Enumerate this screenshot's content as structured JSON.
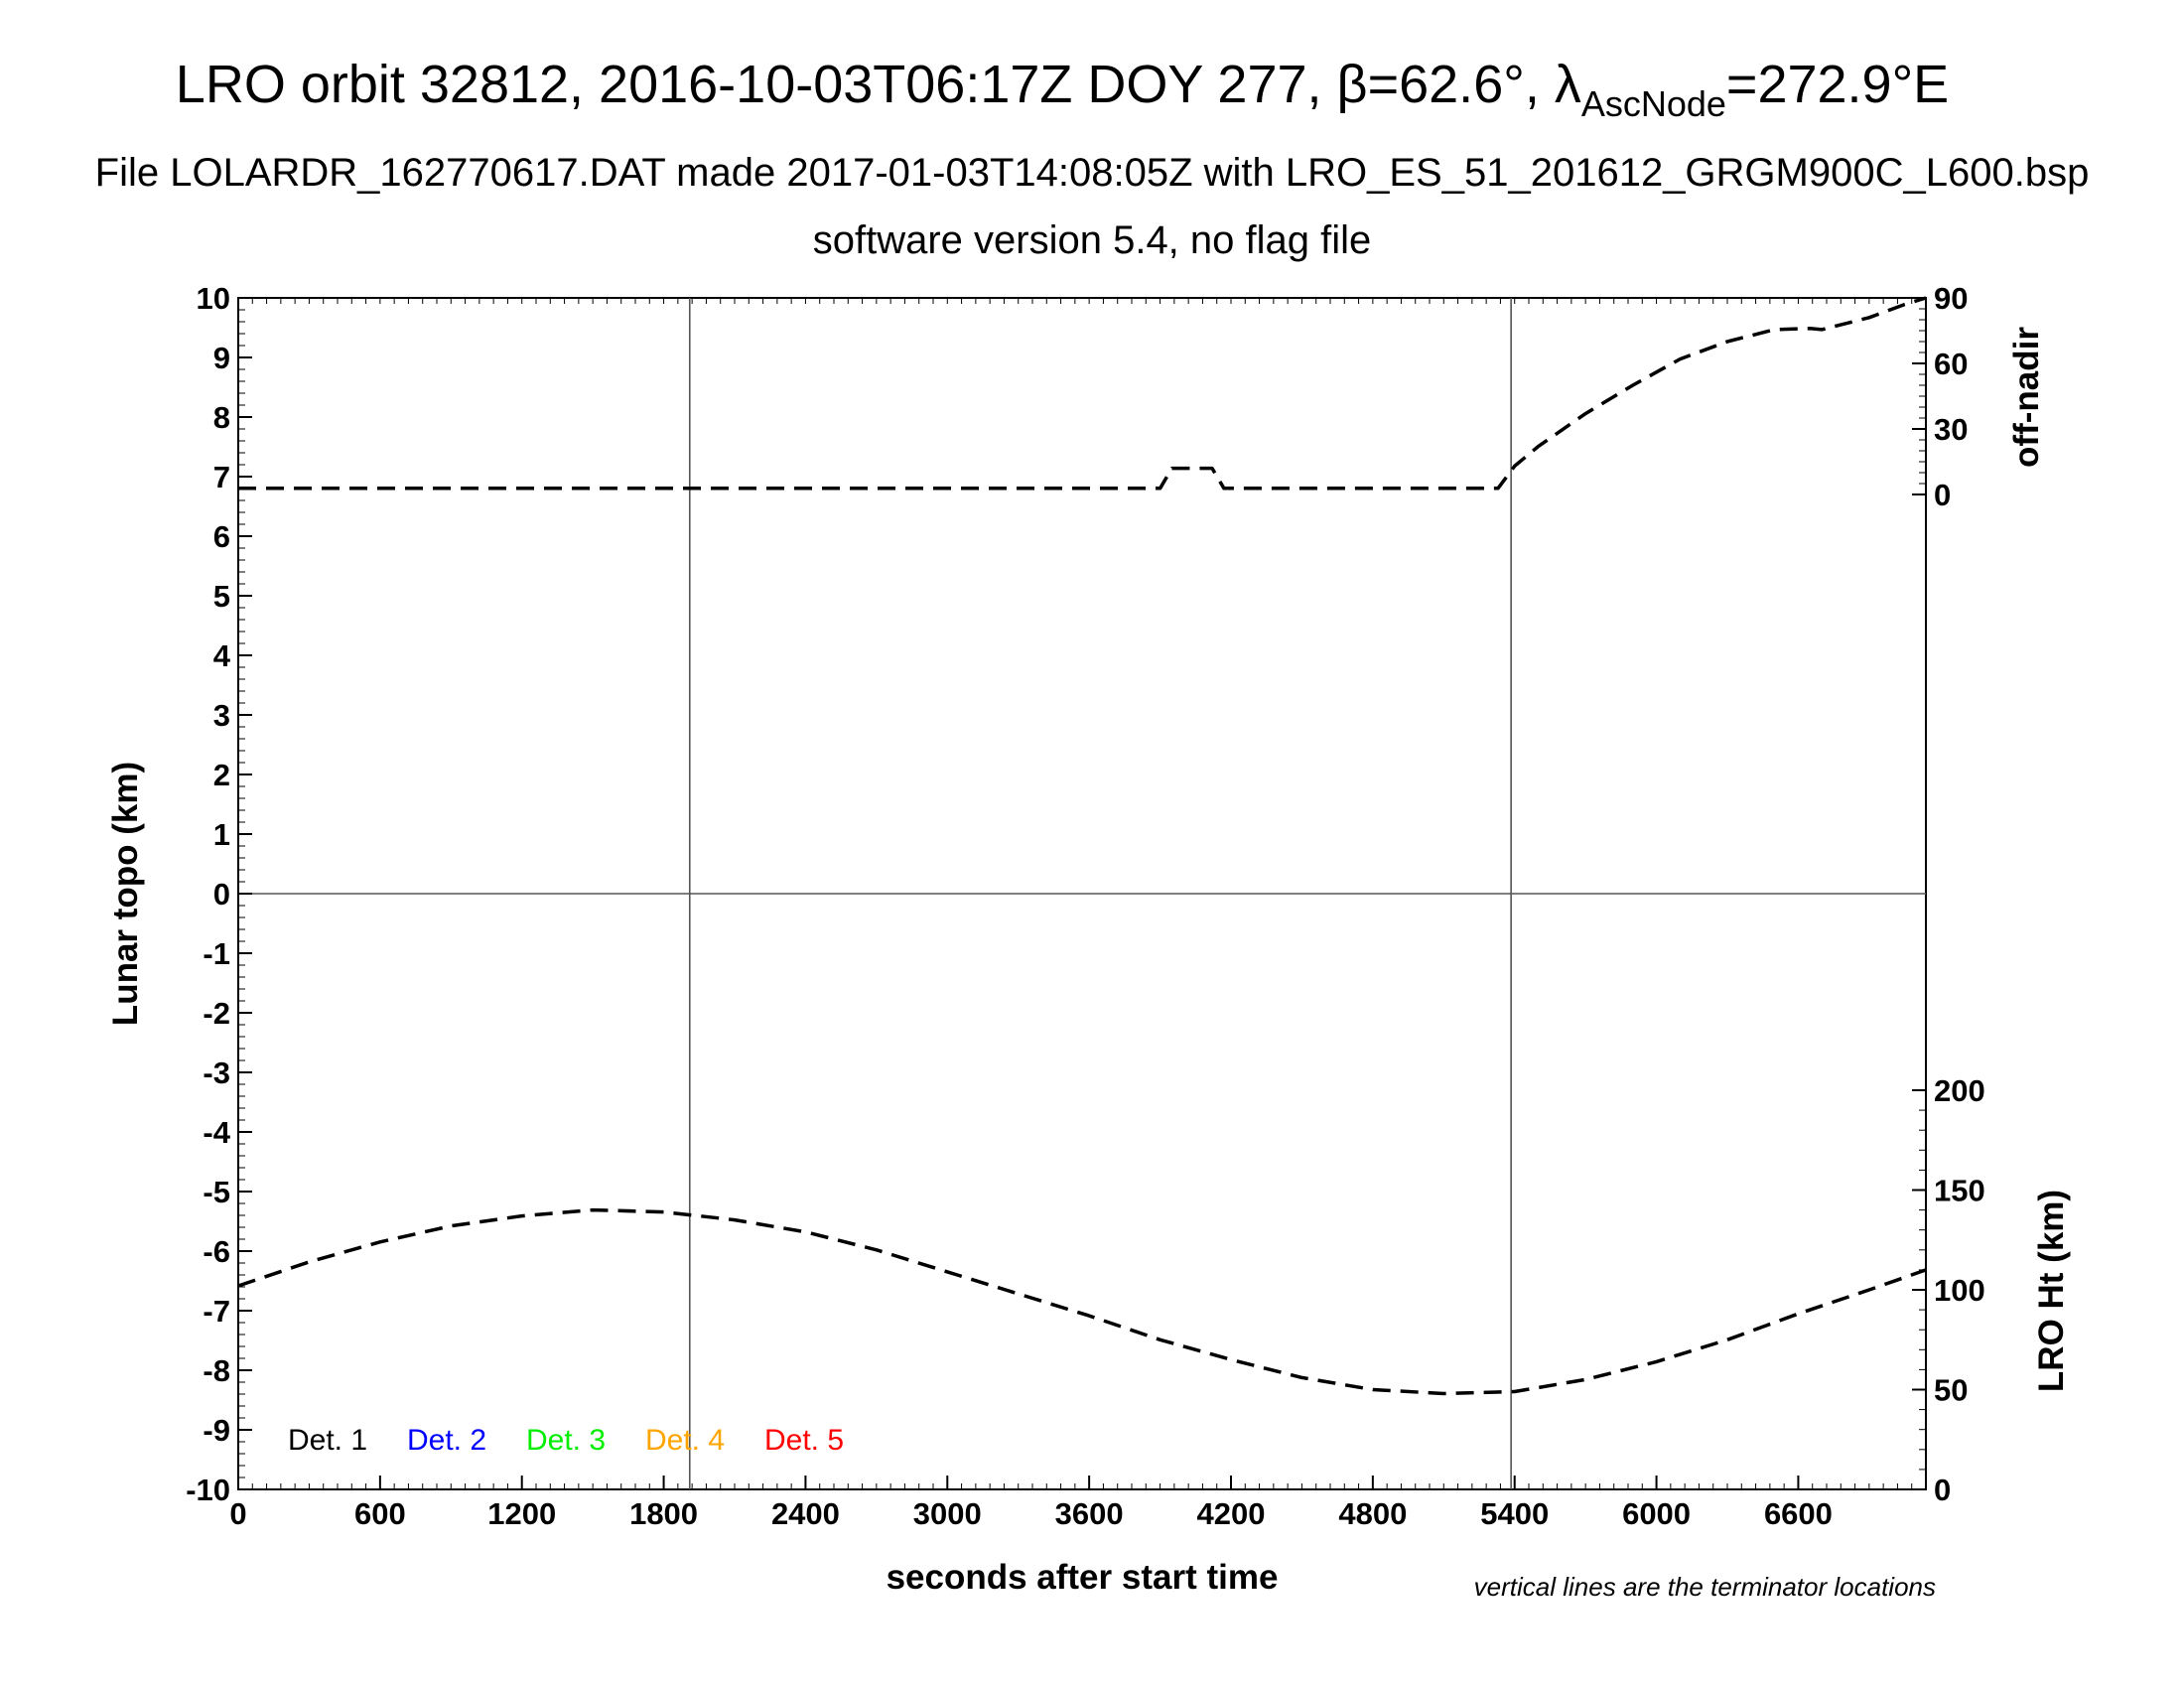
{
  "chart_data": {
    "type": "line",
    "title": {
      "main": "LRO orbit 32812, 2016-10-03T06:17Z DOY 277, β=62.6°, λ",
      "sub_text": "AscNode",
      "after": "=272.9°E"
    },
    "subtitle_1": "File LOLARDR_162770617.DAT made 2017-01-03T14:08:05Z with LRO_ES_51_201612_GRGM900C_L600.bsp",
    "subtitle_2": "software version 5.4, no flag file",
    "xlabel": "seconds after start time",
    "ylabel_left": "Lunar topo (km)",
    "ylabel_right_top": "off-nadir",
    "ylabel_right_bottom": "LRO Ht (km)",
    "xlim": [
      0,
      7140
    ],
    "ylim": [
      -10,
      10
    ],
    "x_ticks": [
      "0",
      "600",
      "1200",
      "1800",
      "2400",
      "3000",
      "3600",
      "4200",
      "4800",
      "5400",
      "6000",
      "6600"
    ],
    "y_ticks": [
      "-10",
      "-9",
      "-8",
      "-7",
      "-6",
      "-5",
      "-4",
      "-3",
      "-2",
      "-1",
      "0",
      "1",
      "2",
      "3",
      "4",
      "5",
      "6",
      "7",
      "8",
      "9",
      "10"
    ],
    "right_top_ticks": [
      {
        "label": "0",
        "value": 0
      },
      {
        "label": "30",
        "value": 30
      },
      {
        "label": "60",
        "value": 60
      },
      {
        "label": "90",
        "value": 90
      }
    ],
    "right_bottom_ticks": [
      "0",
      "50",
      "100",
      "150",
      "200"
    ],
    "terminator_lines_x": [
      1910,
      5385
    ],
    "legend": [
      {
        "label": "Det. 1",
        "color": "#000000"
      },
      {
        "label": "Det. 2",
        "color": "#0000ff"
      },
      {
        "label": "Det. 3",
        "color": "#00ee00"
      },
      {
        "label": "Det. 4",
        "color": "#ffa500"
      },
      {
        "label": "Det. 5",
        "color": "#ff0000"
      }
    ],
    "footnote": "vertical lines are the terminator locations",
    "series": [
      {
        "axis": "off-nadir",
        "style": "dashed",
        "x": [
          0,
          3900,
          3950,
          4120,
          4170,
          5330,
          5400,
          5500,
          5700,
          5900,
          6100,
          6300,
          6500,
          6650,
          6700,
          6900,
          7050,
          7140
        ],
        "values": [
          2.8,
          2.8,
          12,
          12,
          2.8,
          2.8,
          13,
          22,
          37,
          50,
          62,
          70,
          75.5,
          76,
          75.5,
          81,
          87,
          90
        ]
      },
      {
        "axis": "LRO Ht",
        "style": "dashed",
        "x": [
          0,
          300,
          600,
          900,
          1200,
          1500,
          1800,
          2100,
          2400,
          2700,
          3000,
          3300,
          3600,
          3900,
          4200,
          4500,
          4800,
          5100,
          5400,
          5700,
          6000,
          6300,
          6600,
          6900,
          7140
        ],
        "values": [
          102,
          114,
          124,
          132,
          137,
          140,
          139,
          135,
          129,
          120,
          109,
          98,
          87,
          75,
          65,
          56,
          50,
          48,
          49,
          55,
          64,
          75,
          88,
          100,
          110
        ]
      }
    ]
  }
}
